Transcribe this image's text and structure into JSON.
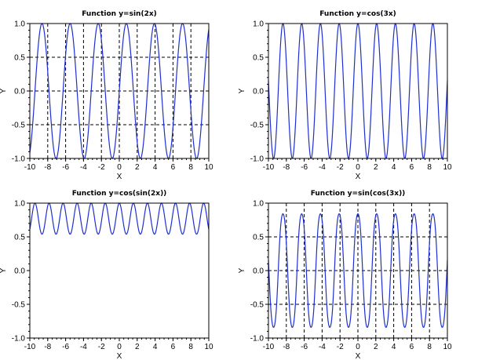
{
  "chart_data": [
    {
      "type": "line",
      "title": "Function y=sin(2x)",
      "xlabel": "X",
      "ylabel": "Y",
      "expr": "sin(2x)",
      "x_range": [
        -10,
        10
      ],
      "ylim": [
        -1.0,
        1.0
      ],
      "x_ticks": [
        -10,
        -8,
        -6,
        -4,
        -2,
        0,
        2,
        4,
        6,
        8,
        10
      ],
      "y_ticks": [
        -1.0,
        -0.5,
        0.0,
        0.5,
        1.0
      ],
      "x_tick_labels": [
        "-10",
        "-8",
        "-6",
        "-4",
        "-2",
        "0",
        "2",
        "4",
        "6",
        "8",
        "10"
      ],
      "y_tick_labels": [
        "-1.0",
        "-0.5",
        "0.0",
        "0.5",
        "1.0"
      ],
      "grid": true,
      "line_color": "#1f2fd0"
    },
    {
      "type": "line",
      "title": "Function y=cos(3x)",
      "xlabel": "X",
      "ylabel": "Y",
      "expr": "cos(3x)",
      "x_range": [
        -10,
        10
      ],
      "ylim": [
        -1.0,
        1.0
      ],
      "x_ticks": [
        -10,
        -8,
        -6,
        -4,
        -2,
        0,
        2,
        4,
        6,
        8,
        10
      ],
      "y_ticks": [
        -1.0,
        -0.5,
        0.0,
        0.5,
        1.0
      ],
      "x_tick_labels": [
        "-10",
        "-8",
        "-6",
        "-4",
        "-2",
        "0",
        "2",
        "4",
        "6",
        "8",
        "10"
      ],
      "y_tick_labels": [
        "-1.0",
        "-0.5",
        "0.0",
        "0.5",
        "1.0"
      ],
      "grid": false,
      "line_color": "#1f2fd0"
    },
    {
      "type": "line",
      "title": "Function y=cos(sin(2x))",
      "xlabel": "X",
      "ylabel": "Y",
      "expr": "cos(sin(2x))",
      "x_range": [
        -10,
        10
      ],
      "ylim": [
        -1.0,
        1.0
      ],
      "x_ticks": [
        -10,
        -8,
        -6,
        -4,
        -2,
        0,
        2,
        4,
        6,
        8,
        10
      ],
      "y_ticks": [
        -1.0,
        -0.5,
        0.0,
        0.5,
        1.0
      ],
      "x_tick_labels": [
        "-10",
        "-8",
        "-6",
        "-4",
        "-2",
        "0",
        "2",
        "4",
        "6",
        "8",
        "10"
      ],
      "y_tick_labels": [
        "-1.0",
        "-0.5",
        "0.0",
        "0.5",
        "1.0"
      ],
      "grid": false,
      "line_color": "#1f2fd0"
    },
    {
      "type": "line",
      "title": "Function y=sin(cos(3x))",
      "xlabel": "X",
      "ylabel": "Y",
      "expr": "sin(cos(3x))",
      "x_range": [
        -10,
        10
      ],
      "ylim": [
        -1.0,
        1.0
      ],
      "x_ticks": [
        -10,
        -8,
        -6,
        -4,
        -2,
        0,
        2,
        4,
        6,
        8,
        10
      ],
      "y_ticks": [
        -1.0,
        -0.5,
        0.0,
        0.5,
        1.0
      ],
      "x_tick_labels": [
        "-10",
        "-8",
        "-6",
        "-4",
        "-2",
        "0",
        "2",
        "4",
        "6",
        "8",
        "10"
      ],
      "y_tick_labels": [
        "-1.0",
        "-0.5",
        "0.0",
        "0.5",
        "1.0"
      ],
      "grid": true,
      "line_color": "#1f2fd0"
    }
  ]
}
